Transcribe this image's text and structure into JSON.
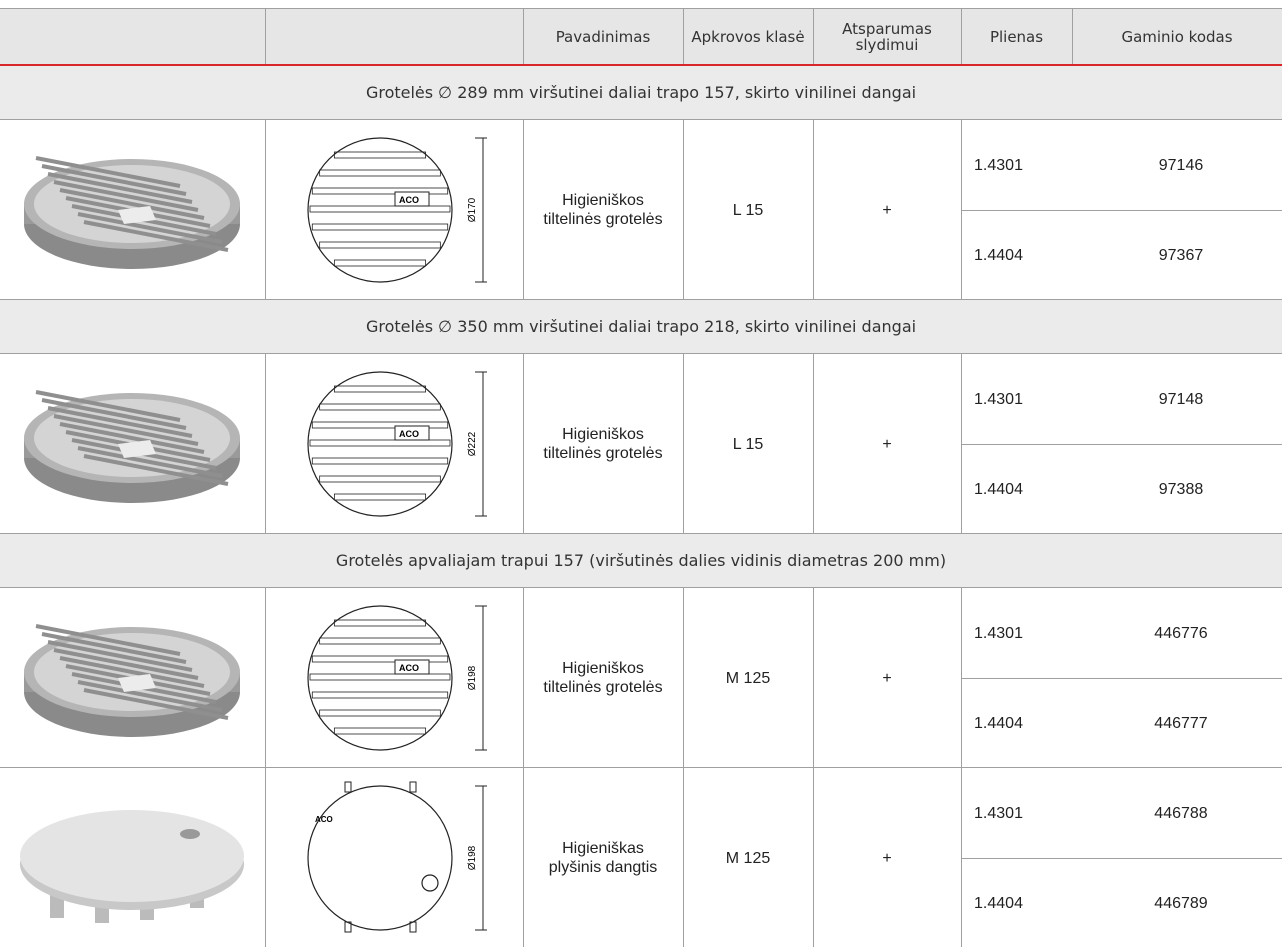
{
  "header": {
    "columns": [
      "Pavadinimas",
      "Apkrovos klasė",
      "Atsparumas slydimui",
      "Plienas",
      "Gaminio kodas"
    ]
  },
  "sections": [
    {
      "title": "Grotelės ∅ 289 mm viršutinei daliai trapo 157, skirto vinilinei dangai",
      "items": [
        {
          "drawing": {
            "logo": "ACO",
            "diameter": "Ø170"
          },
          "name": "Higieniškos tiltelinės grotelės",
          "load_class": "L 15",
          "slip_resistance": "+",
          "variants": [
            {
              "steel": "1.4301",
              "code": "97146"
            },
            {
              "steel": "1.4404",
              "code": "97367"
            }
          ]
        }
      ]
    },
    {
      "title": "Grotelės ∅ 350 mm viršutinei daliai trapo 218, skirto vinilinei dangai",
      "items": [
        {
          "drawing": {
            "logo": "ACO",
            "diameter": "Ø222"
          },
          "name": "Higieniškos tiltelinės grotelės",
          "load_class": "L 15",
          "slip_resistance": "+",
          "variants": [
            {
              "steel": "1.4301",
              "code": "97148"
            },
            {
              "steel": "1.4404",
              "code": "97388"
            }
          ]
        }
      ]
    },
    {
      "title": "Grotelės apvaliajam trapui 157 (viršutinės dalies vidinis diametras 200 mm)",
      "items": [
        {
          "drawing": {
            "logo": "ACO",
            "diameter": "Ø198"
          },
          "name": "Higieniškos tiltelinės grotelės",
          "load_class": "M 125",
          "slip_resistance": "+",
          "variants": [
            {
              "steel": "1.4301",
              "code": "446776"
            },
            {
              "steel": "1.4404",
              "code": "446777"
            }
          ]
        },
        {
          "drawing": {
            "logo": "ACO",
            "diameter": "Ø198"
          },
          "name": "Higieniškas plyšinis dangtis",
          "load_class": "M 125",
          "slip_resistance": "+",
          "variants": [
            {
              "steel": "1.4301",
              "code": "446788"
            },
            {
              "steel": "1.4404",
              "code": "446789"
            }
          ]
        }
      ]
    }
  ]
}
